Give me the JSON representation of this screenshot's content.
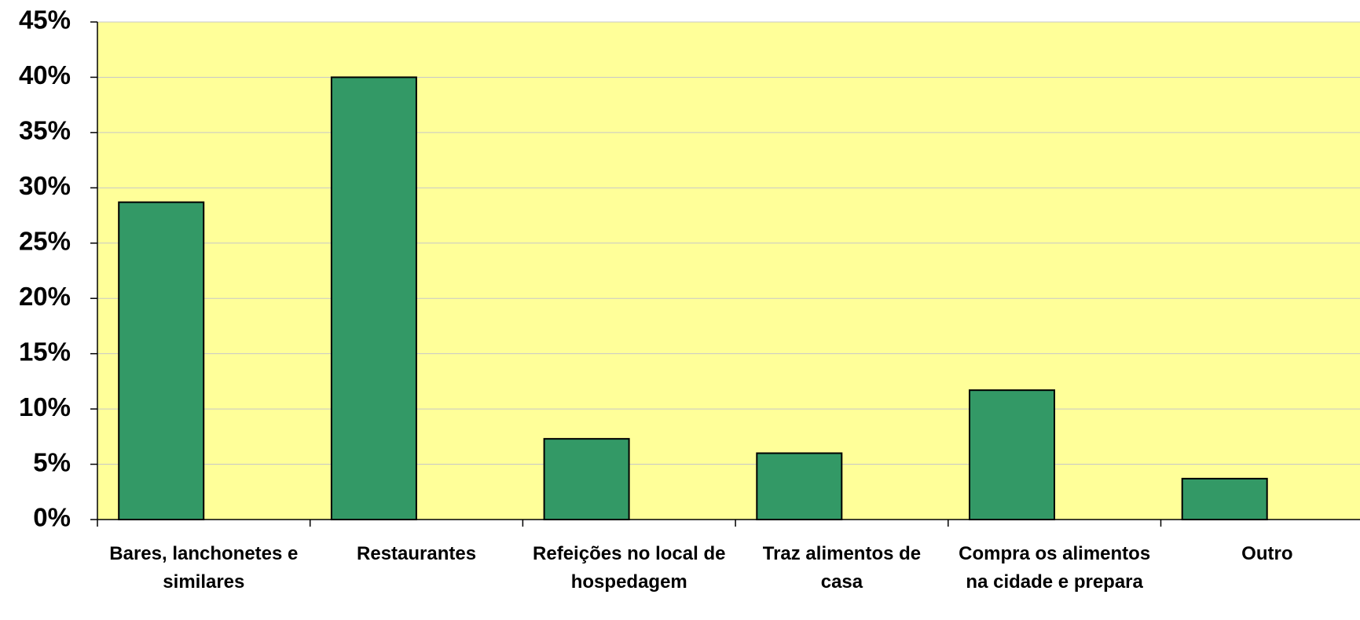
{
  "chart_data": {
    "type": "bar",
    "categories": [
      "Bares, lanchonetes e similares",
      "Restaurantes",
      "Refeições no local de hospedagem",
      "Traz alimentos de casa",
      "Compra os alimentos na cidade e prepara",
      "Outro"
    ],
    "values": [
      28.7,
      40,
      7.3,
      6,
      11.7,
      3.7
    ],
    "color": "#339966",
    "plot_background": "#ffff99",
    "ylim": [
      0,
      45
    ],
    "yticks": [
      {
        "value": 0,
        "label": "0%"
      },
      {
        "value": 5,
        "label": "5%"
      },
      {
        "value": 10,
        "label": "10%"
      },
      {
        "value": 15,
        "label": "15%"
      },
      {
        "value": 20,
        "label": "20%"
      },
      {
        "value": 25,
        "label": "25%"
      },
      {
        "value": 30,
        "label": "30%"
      },
      {
        "value": 35,
        "label": "35%"
      },
      {
        "value": 40,
        "label": "40%"
      },
      {
        "value": 45,
        "label": "45%"
      }
    ],
    "grid": true
  }
}
